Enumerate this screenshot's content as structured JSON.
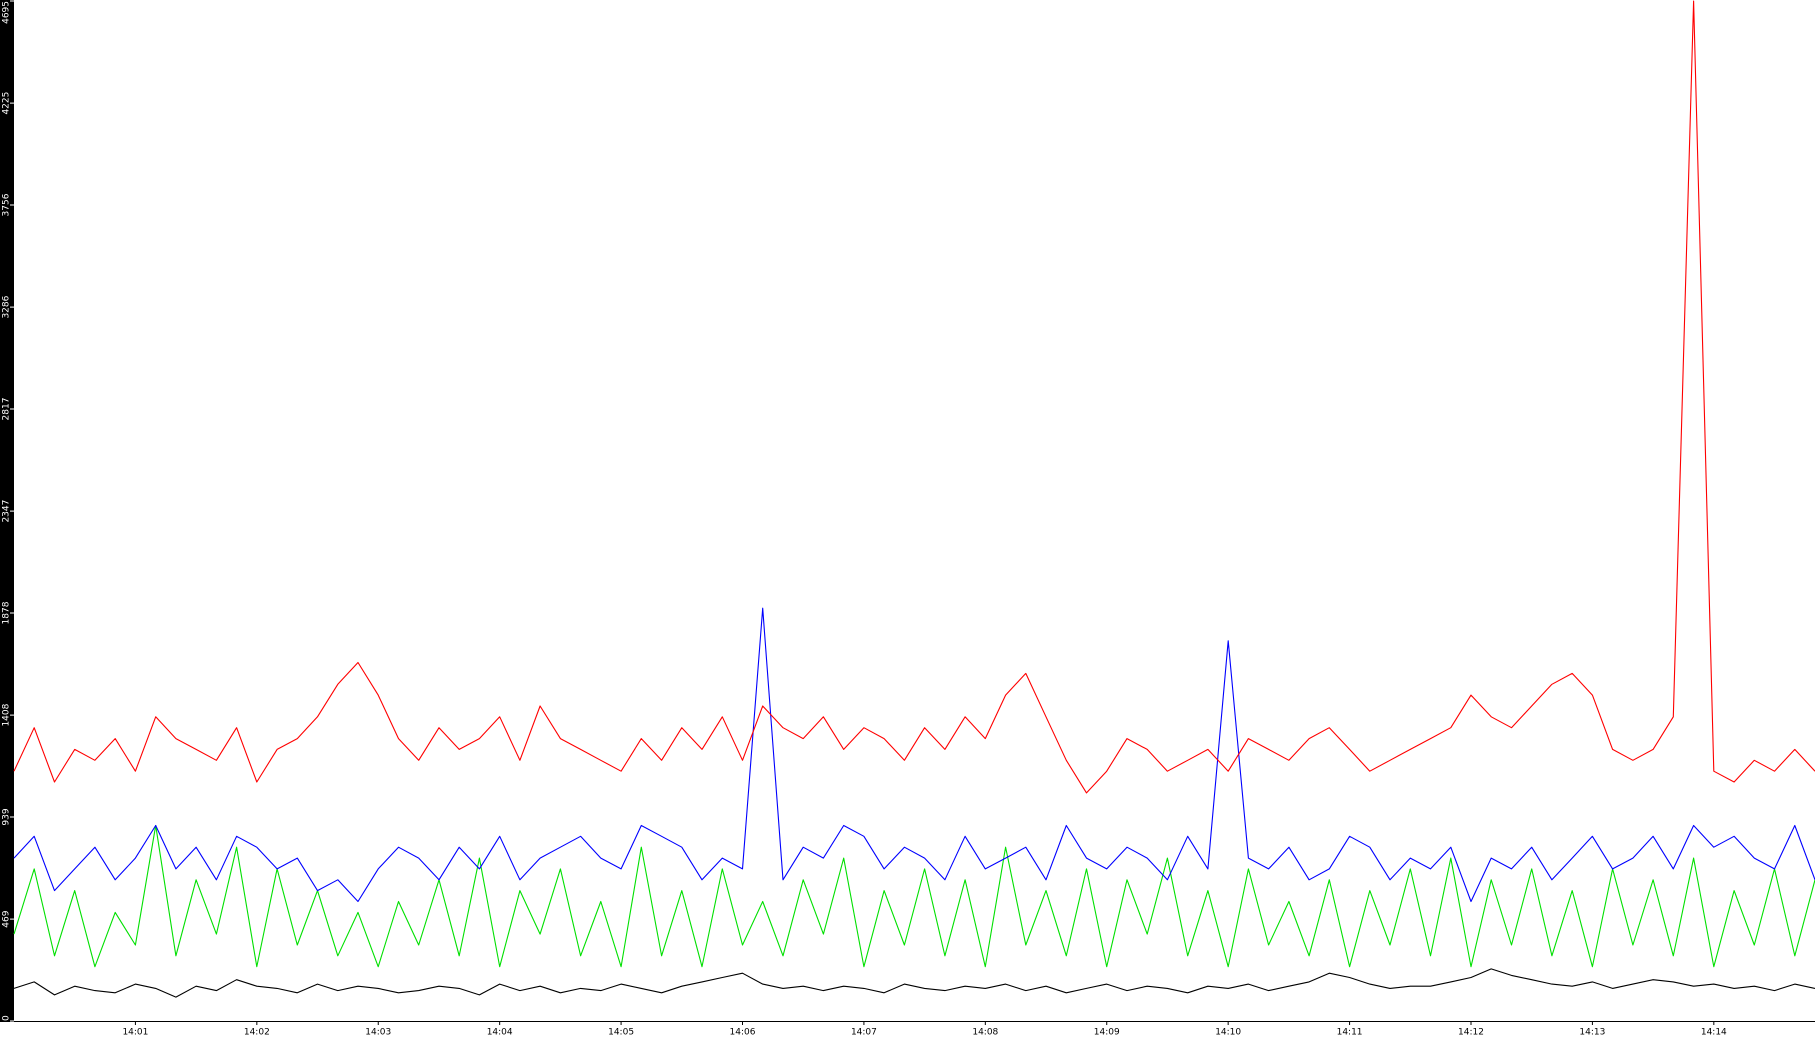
{
  "chart_data": {
    "type": "line",
    "xlim": [
      0,
      89
    ],
    "xticks": [
      {
        "value": 6,
        "label": "14:01"
      },
      {
        "value": 12,
        "label": "14:02"
      },
      {
        "value": 18,
        "label": "14:03"
      },
      {
        "value": 24,
        "label": "14:04"
      },
      {
        "value": 30,
        "label": "14:05"
      },
      {
        "value": 36,
        "label": "14:06"
      },
      {
        "value": 42,
        "label": "14:07"
      },
      {
        "value": 48,
        "label": "14:08"
      },
      {
        "value": 54,
        "label": "14:09"
      },
      {
        "value": 60,
        "label": "14:10"
      },
      {
        "value": 66,
        "label": "14:11"
      },
      {
        "value": 72,
        "label": "14:12"
      },
      {
        "value": 78,
        "label": "14:13"
      },
      {
        "value": 84,
        "label": "14:14"
      }
    ],
    "ylim": [
      0,
      4695
    ],
    "yticks": [
      0,
      469,
      939,
      1408,
      1878,
      2347,
      2817,
      3286,
      3756,
      4225,
      4695
    ],
    "series": [
      {
        "color": "#000000",
        "values": [
          150,
          180,
          120,
          160,
          140,
          130,
          170,
          150,
          110,
          160,
          140,
          190,
          160,
          150,
          130,
          170,
          140,
          160,
          150,
          130,
          140,
          160,
          150,
          120,
          170,
          140,
          160,
          130,
          150,
          140,
          170,
          150,
          130,
          160,
          180,
          200,
          220,
          170,
          150,
          160,
          140,
          160,
          150,
          130,
          170,
          150,
          140,
          160,
          150,
          170,
          140,
          160,
          130,
          150,
          170,
          140,
          160,
          150,
          130,
          160,
          150,
          170,
          140,
          160,
          180,
          220,
          200,
          170,
          150,
          160,
          160,
          180,
          200,
          240,
          210,
          190,
          170,
          160,
          180,
          150,
          170,
          190,
          180,
          160,
          170,
          150,
          160,
          140,
          170,
          150
        ]
      },
      {
        "color": "#00e000",
        "values": [
          400,
          700,
          300,
          600,
          250,
          500,
          350,
          900,
          300,
          650,
          400,
          800,
          250,
          700,
          350,
          600,
          300,
          500,
          250,
          550,
          350,
          650,
          300,
          750,
          250,
          600,
          400,
          700,
          300,
          550,
          250,
          800,
          300,
          600,
          250,
          700,
          350,
          550,
          300,
          650,
          400,
          750,
          250,
          600,
          350,
          700,
          300,
          650,
          250,
          800,
          350,
          600,
          300,
          700,
          250,
          650,
          400,
          750,
          300,
          600,
          250,
          700,
          350,
          550,
          300,
          650,
          250,
          600,
          350,
          700,
          300,
          750,
          250,
          650,
          350,
          700,
          300,
          600,
          250,
          700,
          350,
          650,
          300,
          750,
          250,
          600,
          350,
          700,
          300,
          650
        ]
      },
      {
        "color": "#0000ff",
        "values": [
          750,
          850,
          600,
          700,
          800,
          650,
          750,
          900,
          700,
          800,
          650,
          850,
          800,
          700,
          750,
          600,
          650,
          550,
          700,
          800,
          750,
          650,
          800,
          700,
          850,
          650,
          750,
          800,
          850,
          750,
          700,
          900,
          850,
          800,
          650,
          750,
          700,
          1900,
          650,
          800,
          750,
          900,
          850,
          700,
          800,
          750,
          650,
          850,
          700,
          750,
          800,
          650,
          900,
          750,
          700,
          800,
          750,
          650,
          850,
          700,
          1750,
          750,
          700,
          800,
          650,
          700,
          850,
          800,
          650,
          750,
          700,
          800,
          550,
          750,
          700,
          800,
          650,
          750,
          850,
          700,
          750,
          850,
          700,
          900,
          800,
          850,
          750,
          700,
          900,
          650
        ]
      },
      {
        "color": "#ff0000",
        "values": [
          1150,
          1350,
          1100,
          1250,
          1200,
          1300,
          1150,
          1400,
          1300,
          1250,
          1200,
          1350,
          1100,
          1250,
          1300,
          1400,
          1550,
          1650,
          1500,
          1300,
          1200,
          1350,
          1250,
          1300,
          1400,
          1200,
          1450,
          1300,
          1250,
          1200,
          1150,
          1300,
          1200,
          1350,
          1250,
          1400,
          1200,
          1450,
          1350,
          1300,
          1400,
          1250,
          1350,
          1300,
          1200,
          1350,
          1250,
          1400,
          1300,
          1500,
          1600,
          1400,
          1200,
          1050,
          1150,
          1300,
          1250,
          1150,
          1200,
          1250,
          1150,
          1300,
          1250,
          1200,
          1300,
          1350,
          1250,
          1150,
          1200,
          1250,
          1300,
          1350,
          1500,
          1400,
          1350,
          1450,
          1550,
          1600,
          1500,
          1250,
          1200,
          1250,
          1400,
          4695,
          1150,
          1100,
          1200,
          1150,
          1250,
          1150
        ]
      }
    ]
  }
}
